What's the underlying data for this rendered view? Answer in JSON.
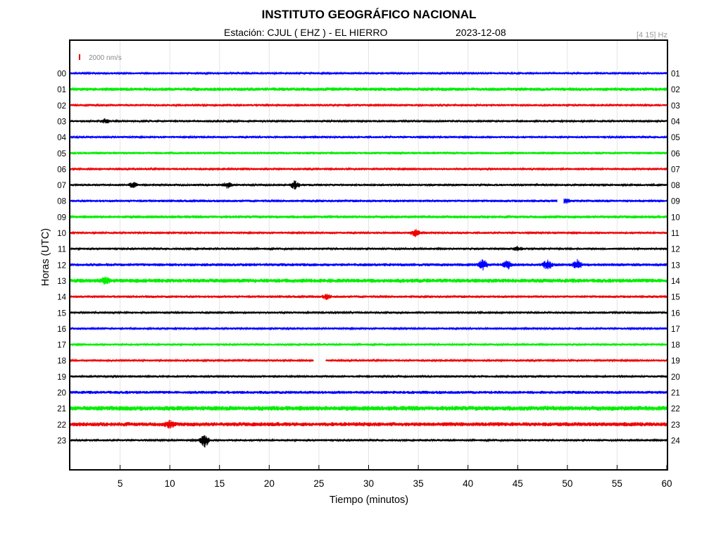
{
  "header": {
    "title": "INSTITUTO GEOGRÁFICO NACIONAL",
    "station": "Estación:  CJUL ( EHZ ) - EL HIERRO",
    "date": "2023-12-08",
    "filter": "[4 15] Hz"
  },
  "chart_data": {
    "type": "line",
    "xlabel": "Tiempo (minutos)",
    "ylabel": "Horas (UTC)",
    "xlim": [
      0,
      60
    ],
    "x_ticks": [
      5,
      10,
      15,
      20,
      25,
      30,
      35,
      40,
      45,
      50,
      55,
      60
    ],
    "grid": true,
    "scale_label": "2000 nm/s",
    "left_labels": [
      "00",
      "01",
      "02",
      "03",
      "04",
      "05",
      "06",
      "07",
      "08",
      "09",
      "10",
      "11",
      "12",
      "13",
      "14",
      "15",
      "16",
      "17",
      "18",
      "19",
      "20",
      "21",
      "22",
      "23"
    ],
    "right_labels": [
      "01",
      "02",
      "03",
      "04",
      "05",
      "06",
      "07",
      "08",
      "09",
      "10",
      "11",
      "12",
      "13",
      "14",
      "15",
      "16",
      "17",
      "18",
      "19",
      "20",
      "21",
      "22",
      "23",
      "24"
    ],
    "colors": [
      "#0000ff",
      "#00ee00",
      "#ee0000",
      "#000000"
    ],
    "scale_color": "#ee0000",
    "trace_amplitude": [
      1.5,
      2.5,
      1.5,
      1.5,
      1.5,
      1.8,
      1.5,
      1.5,
      1.8,
      2.2,
      1.5,
      1.5,
      2.2,
      3.0,
      1.8,
      1.5,
      1.5,
      1.5,
      1.5,
      1.6,
      2.2,
      3.5,
      3.0,
      1.5
    ],
    "gaps": [
      {
        "row": 8,
        "start": 49.0,
        "end": 49.6
      },
      {
        "row": 18,
        "start": 24.5,
        "end": 25.7
      }
    ],
    "events": [
      {
        "row": 3,
        "minute": 3.5,
        "amplitude": 3
      },
      {
        "row": 7,
        "minute": 6.3,
        "amplitude": 4
      },
      {
        "row": 7,
        "minute": 15.8,
        "amplitude": 4
      },
      {
        "row": 7,
        "minute": 22.6,
        "amplitude": 6
      },
      {
        "row": 8,
        "minute": 49.8,
        "amplitude": 3
      },
      {
        "row": 10,
        "minute": 34.7,
        "amplitude": 5
      },
      {
        "row": 11,
        "minute": 45.0,
        "amplitude": 3
      },
      {
        "row": 12,
        "minute": 41.5,
        "amplitude": 7
      },
      {
        "row": 12,
        "minute": 44.0,
        "amplitude": 6
      },
      {
        "row": 12,
        "minute": 48.0,
        "amplitude": 7
      },
      {
        "row": 12,
        "minute": 51.0,
        "amplitude": 6
      },
      {
        "row": 13,
        "minute": 3.5,
        "amplitude": 5
      },
      {
        "row": 14,
        "minute": 25.8,
        "amplitude": 3
      },
      {
        "row": 22,
        "minute": 10.0,
        "amplitude": 4
      },
      {
        "row": 23,
        "minute": 13.5,
        "amplitude": 10
      }
    ]
  }
}
